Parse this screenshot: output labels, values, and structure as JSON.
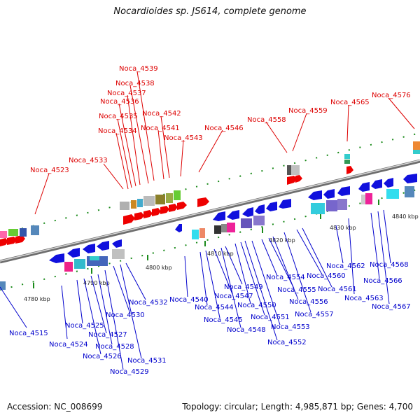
{
  "title": "Nocardioides sp. JS614, complete genome",
  "footer": {
    "accession": "Accession: NC_008699",
    "summary": "Topology: circular; Length: 4,985,871 bp; Genes: 4,700"
  },
  "colors": {
    "forward_label": "#dd0000",
    "reverse_label": "#0000cc",
    "forward_gene": "#ee0000",
    "reverse_gene": "#1010dd",
    "backbone": "#888888",
    "tick": "#1a8a1a"
  },
  "scale_labels": [
    "4780 kbp",
    "4790 kbp",
    "4800 kbp",
    "4810 kbp",
    "4820 kbp",
    "4830 kbp",
    "4840 kbp"
  ],
  "forward_genes": [
    "Noca_4523",
    "Noca_4533",
    "Noca_4534",
    "Noca_4535",
    "Noca_4536",
    "Noca_4537",
    "Noca_4538",
    "Noca_4539",
    "Noca_4541",
    "Noca_4542",
    "Noca_4543",
    "Noca_4546",
    "Noca_4558",
    "Noca_4559",
    "Noca_4565",
    "Noca_4576"
  ],
  "reverse_genes": [
    "Noca_4515",
    "Noca_4524",
    "Noca_4525",
    "Noca_4526",
    "Noca_4527",
    "Noca_4528",
    "Noca_4529",
    "Noca_4530",
    "Noca_4531",
    "Noca_4532",
    "Noca_4540",
    "Noca_4544",
    "Noca_4545",
    "Noca_4547",
    "Noca_4548",
    "Noca_4549",
    "Noca_4550",
    "Noca_4551",
    "Noca_4552",
    "Noca_4553",
    "Noca_4554",
    "Noca_4555",
    "Noca_4556",
    "Noca_4557",
    "Noca_4560",
    "Noca_4561",
    "Noca_4562",
    "Noca_4563",
    "Noca_4566",
    "Noca_4567",
    "Noca_4568"
  ]
}
